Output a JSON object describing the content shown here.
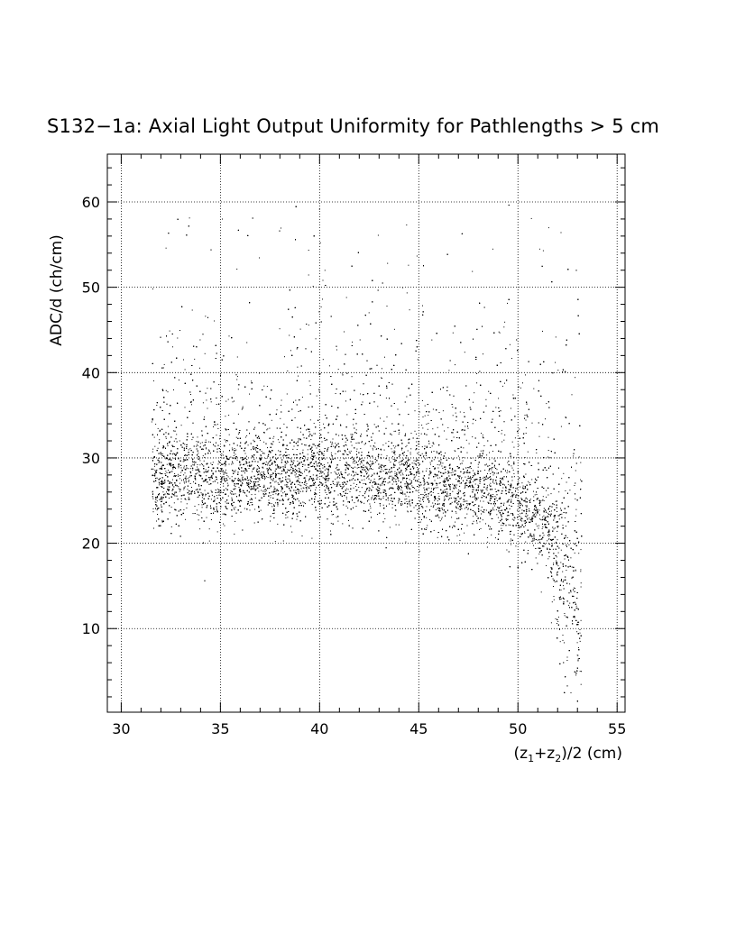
{
  "chart_data": {
    "type": "scatter",
    "title": "S132−1a: Axial Light Output Uniformity for Pathlengths > 5 cm",
    "xlabel_parts": [
      "(z",
      "1",
      "+z",
      "2",
      ")/2 (cm)"
    ],
    "ylabel": "ADC/d (ch/cm)",
    "xlim": [
      29.3,
      55.4
    ],
    "ylim": [
      0.2,
      65.6
    ],
    "x_ticks": [
      30,
      35,
      40,
      45,
      50,
      55
    ],
    "y_ticks": [
      10,
      20,
      30,
      40,
      50,
      60
    ],
    "x_tick_labels": [
      "30",
      "35",
      "40",
      "45",
      "50",
      "55"
    ],
    "y_tick_labels": [
      "10",
      "20",
      "30",
      "40",
      "50",
      "60"
    ],
    "grid": true,
    "grid_style": "dotted",
    "legend": "none",
    "marker_color": "#000000",
    "density_profile": {
      "x_range": [
        31.5,
        53.2
      ],
      "band_center": [
        {
          "x": 32,
          "y": 27.5
        },
        {
          "x": 40,
          "y": 28.0
        },
        {
          "x": 45,
          "y": 27.0
        },
        {
          "x": 48,
          "y": 26.0
        },
        {
          "x": 50,
          "y": 24.5
        },
        {
          "x": 51.5,
          "y": 21.5
        },
        {
          "x": 52.5,
          "y": 15.0
        },
        {
          "x": 53,
          "y": 10.0
        }
      ],
      "band_spread": 2.5,
      "tail_range": [
        30,
        60
      ],
      "approx_points": 16000
    }
  }
}
